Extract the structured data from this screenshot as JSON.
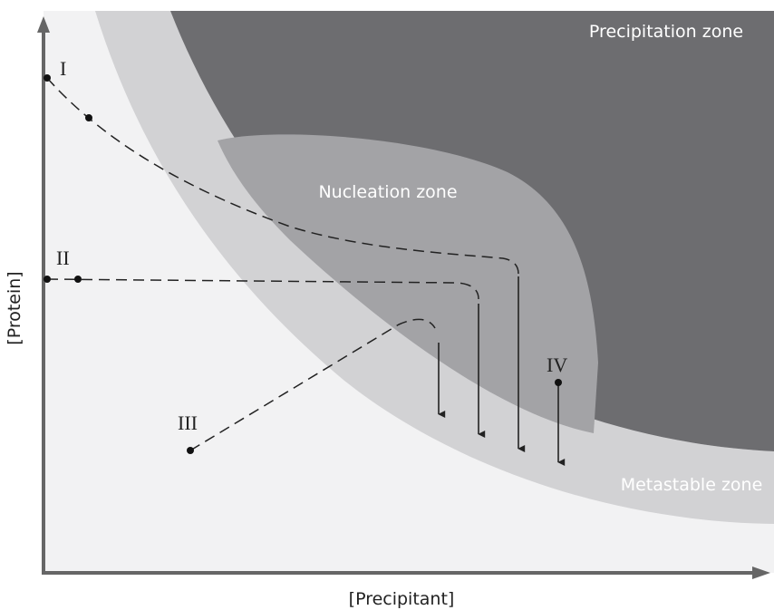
{
  "zones": {
    "precipitation": "Precipitation zone",
    "nucleation": "Nucleation zone",
    "metastable": "Metastable zone"
  },
  "axes": {
    "y": "[Protein]",
    "x": "[Precipitant]"
  },
  "paths": [
    "I",
    "II",
    "III",
    "IV"
  ]
}
